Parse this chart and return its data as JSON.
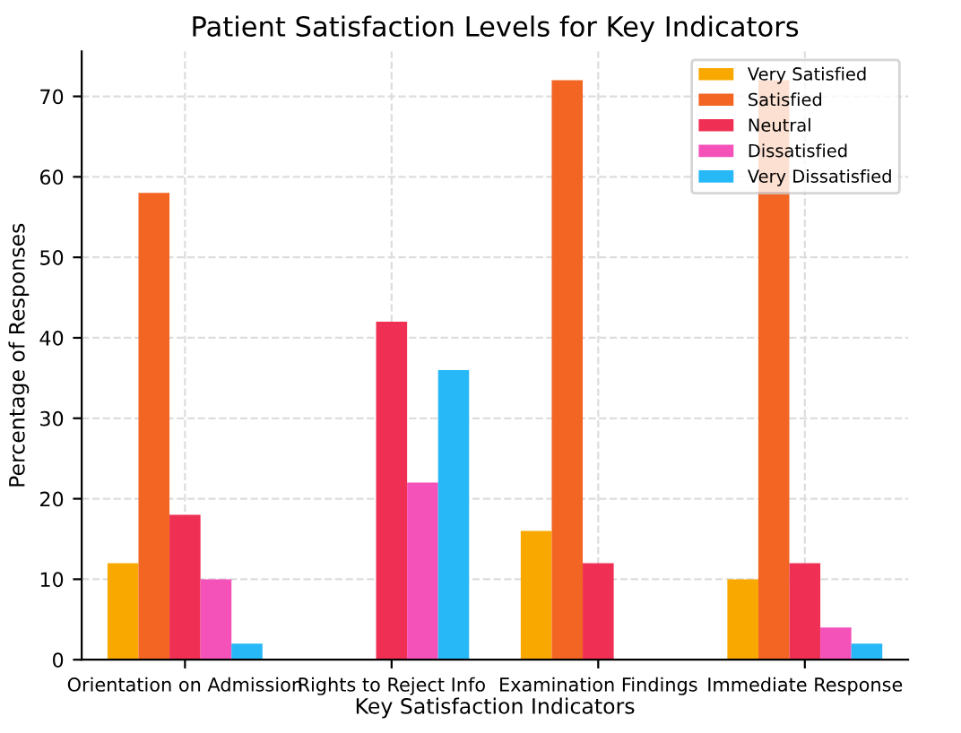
{
  "chart_data": {
    "type": "bar",
    "title": "Patient Satisfaction Levels for Key Indicators",
    "xlabel": "Key Satisfaction Indicators",
    "ylabel": "Percentage of Responses",
    "categories": [
      "Orientation on Admission",
      "Rights to Reject Info",
      "Examination Findings",
      "Immediate Response"
    ],
    "series": [
      {
        "name": "Very Satisfied",
        "color": "#f9a800",
        "values": [
          12,
          0,
          16,
          10
        ]
      },
      {
        "name": "Satisfied",
        "color": "#f26522",
        "values": [
          58,
          0,
          72,
          72
        ]
      },
      {
        "name": "Neutral",
        "color": "#ef3054",
        "values": [
          18,
          42,
          12,
          12
        ]
      },
      {
        "name": "Dissatisfied",
        "color": "#f452b9",
        "values": [
          10,
          22,
          0,
          4
        ]
      },
      {
        "name": "Very Dissatisfied",
        "color": "#27b8f7",
        "values": [
          2,
          36,
          0,
          2
        ]
      }
    ],
    "ylim": [
      0,
      75.6
    ],
    "yticks": [
      0,
      10,
      20,
      30,
      40,
      50,
      60,
      70
    ],
    "grid": true,
    "legend": "top right"
  }
}
